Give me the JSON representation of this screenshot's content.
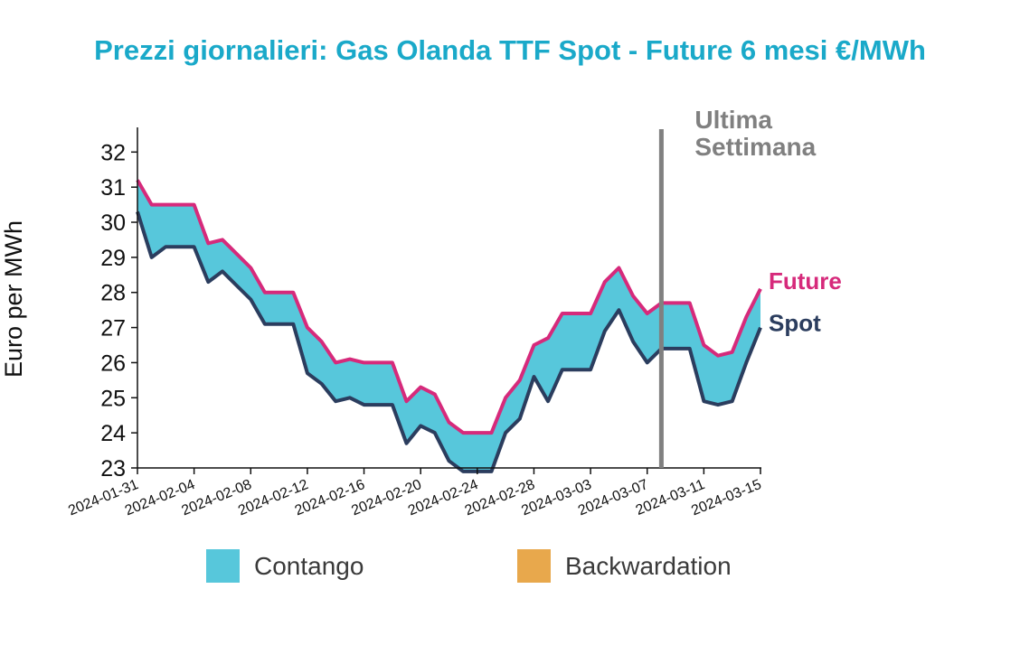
{
  "title": "Prezzi giornalieri: Gas Olanda TTF Spot - Future 6 mesi €/MWh",
  "chart_data": {
    "type": "area",
    "ylabel": "Euro per MWh",
    "ylim": [
      23,
      32.6
    ],
    "yticks": [
      23,
      24,
      25,
      26,
      27,
      28,
      29,
      30,
      31,
      32
    ],
    "xlim": [
      "2024-01-31",
      "2024-03-15"
    ],
    "xticks": [
      "2024-01-31",
      "2024-02-04",
      "2024-02-08",
      "2024-02-12",
      "2024-02-16",
      "2024-02-20",
      "2024-02-24",
      "2024-02-28",
      "2024-03-03",
      "2024-03-07",
      "2024-03-11",
      "2024-03-15"
    ],
    "marker": {
      "date": "2024-03-08",
      "label": [
        "Ultima",
        "Settimana"
      ],
      "color": "#808080"
    },
    "series": [
      {
        "name": "Future",
        "color": "#d62a7b",
        "points": [
          [
            "2024-01-31",
            31.2
          ],
          [
            "2024-02-01",
            30.5
          ],
          [
            "2024-02-04",
            30.5
          ],
          [
            "2024-02-05",
            29.4
          ],
          [
            "2024-02-06",
            29.5
          ],
          [
            "2024-02-08",
            28.7
          ],
          [
            "2024-02-09",
            28.0
          ],
          [
            "2024-02-11",
            28.0
          ],
          [
            "2024-02-12",
            27.0
          ],
          [
            "2024-02-13",
            26.6
          ],
          [
            "2024-02-14",
            26.0
          ],
          [
            "2024-02-15",
            26.1
          ],
          [
            "2024-02-16",
            26.0
          ],
          [
            "2024-02-18",
            26.0
          ],
          [
            "2024-02-19",
            24.9
          ],
          [
            "2024-02-20",
            25.3
          ],
          [
            "2024-02-21",
            25.1
          ],
          [
            "2024-02-22",
            24.3
          ],
          [
            "2024-02-23",
            24.0
          ],
          [
            "2024-02-25",
            24.0
          ],
          [
            "2024-02-26",
            25.0
          ],
          [
            "2024-02-27",
            25.5
          ],
          [
            "2024-02-28",
            26.5
          ],
          [
            "2024-02-29",
            26.7
          ],
          [
            "2024-03-01",
            27.4
          ],
          [
            "2024-03-03",
            27.4
          ],
          [
            "2024-03-04",
            28.3
          ],
          [
            "2024-03-05",
            28.7
          ],
          [
            "2024-03-06",
            27.9
          ],
          [
            "2024-03-07",
            27.4
          ],
          [
            "2024-03-08",
            27.7
          ],
          [
            "2024-03-10",
            27.7
          ],
          [
            "2024-03-11",
            26.5
          ],
          [
            "2024-03-12",
            26.2
          ],
          [
            "2024-03-13",
            26.3
          ],
          [
            "2024-03-14",
            27.3
          ],
          [
            "2024-03-15",
            28.1
          ]
        ]
      },
      {
        "name": "Spot",
        "color": "#2b3d5e",
        "points": [
          [
            "2024-01-31",
            30.3
          ],
          [
            "2024-02-01",
            29.0
          ],
          [
            "2024-02-02",
            29.3
          ],
          [
            "2024-02-04",
            29.3
          ],
          [
            "2024-02-05",
            28.3
          ],
          [
            "2024-02-06",
            28.6
          ],
          [
            "2024-02-07",
            28.2
          ],
          [
            "2024-02-08",
            27.8
          ],
          [
            "2024-02-09",
            27.1
          ],
          [
            "2024-02-11",
            27.1
          ],
          [
            "2024-02-12",
            25.7
          ],
          [
            "2024-02-13",
            25.4
          ],
          [
            "2024-02-14",
            24.9
          ],
          [
            "2024-02-15",
            25.0
          ],
          [
            "2024-02-16",
            24.8
          ],
          [
            "2024-02-18",
            24.8
          ],
          [
            "2024-02-19",
            23.7
          ],
          [
            "2024-02-20",
            24.2
          ],
          [
            "2024-02-21",
            24.0
          ],
          [
            "2024-02-22",
            23.2
          ],
          [
            "2024-02-23",
            22.9
          ],
          [
            "2024-02-25",
            22.9
          ],
          [
            "2024-02-26",
            24.0
          ],
          [
            "2024-02-27",
            24.4
          ],
          [
            "2024-02-28",
            25.6
          ],
          [
            "2024-02-29",
            24.9
          ],
          [
            "2024-03-01",
            25.8
          ],
          [
            "2024-03-03",
            25.8
          ],
          [
            "2024-03-04",
            26.9
          ],
          [
            "2024-03-05",
            27.5
          ],
          [
            "2024-03-06",
            26.6
          ],
          [
            "2024-03-07",
            26.0
          ],
          [
            "2024-03-08",
            26.4
          ],
          [
            "2024-03-10",
            26.4
          ],
          [
            "2024-03-11",
            24.9
          ],
          [
            "2024-03-12",
            24.8
          ],
          [
            "2024-03-13",
            24.9
          ],
          [
            "2024-03-14",
            26.0
          ],
          [
            "2024-03-15",
            27.0
          ]
        ]
      }
    ],
    "legend": [
      {
        "label": "Contango",
        "color": "#57c7db"
      },
      {
        "label": "Backwardation",
        "color": "#e8a84c"
      }
    ],
    "legend_position": "bottom",
    "grid": false
  }
}
